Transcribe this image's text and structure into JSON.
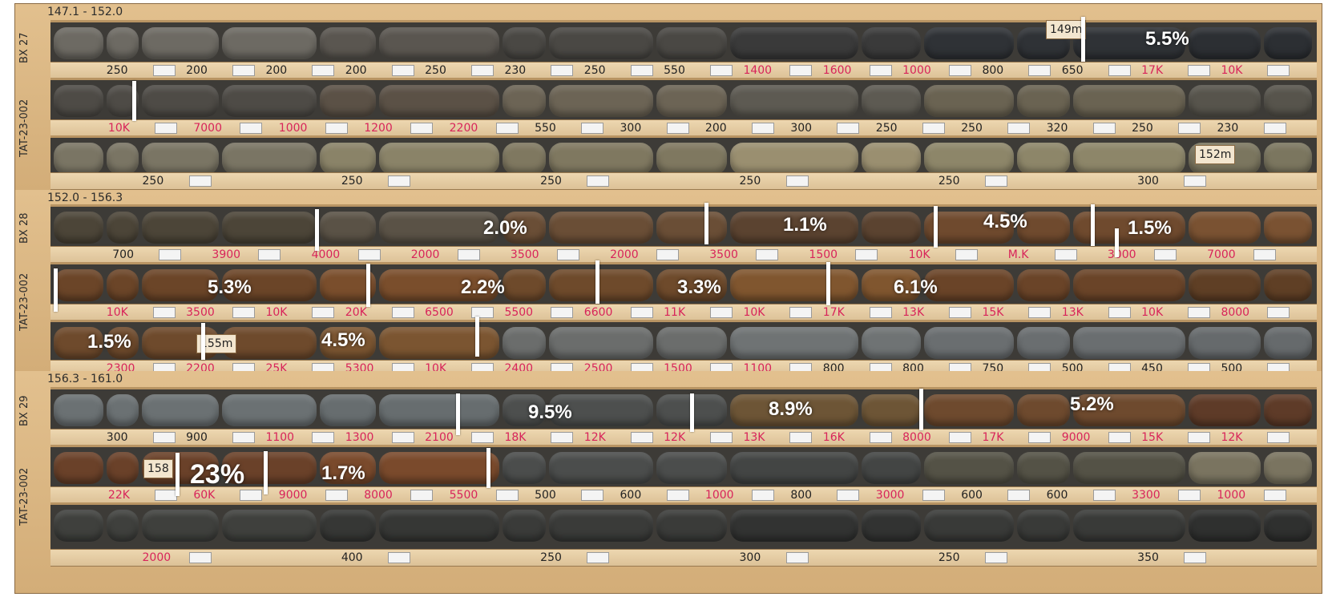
{
  "boxes": [
    {
      "header": "147.1 - 152.0",
      "side_label": "BX 27"
    },
    {
      "header": "152.0 - 156.3",
      "side_label": "BX 28"
    },
    {
      "header": "156.3 - 161.0",
      "side_label": "BX 29"
    }
  ],
  "hole_labels": [
    "TAT-23-002",
    "TAT-23-002",
    "TAT-23-002"
  ],
  "depth_tags": [
    "149m",
    "152m",
    "155m",
    "158"
  ],
  "rows": [
    {
      "assays": [
        "250",
        "200",
        "200",
        "200",
        "250",
        "230",
        "250",
        "550",
        "1400",
        "1600",
        "1000",
        "800",
        "650",
        "17K",
        "10K"
      ],
      "tone": [
        "#6d6a63",
        "#5a5650",
        "#4a4844",
        "#3a3a3a",
        "#2f3236",
        "#2c2f33"
      ]
    },
    {
      "assays": [
        "10K",
        "7000",
        "1000",
        "1200",
        "2200",
        "550",
        "300",
        "200",
        "300",
        "250",
        "250",
        "320",
        "250",
        "230"
      ],
      "tone": [
        "#4e4b46",
        "#5b5146",
        "#6c6455",
        "#5d5a52",
        "#6a6352",
        "#57544c"
      ]
    },
    {
      "assays": [
        "250",
        "250",
        "250",
        "250",
        "250",
        "300"
      ],
      "tone": [
        "#7a7564",
        "#8a8368",
        "#7f7860",
        "#9a8f70",
        "#8d8669",
        "#7b765f"
      ]
    },
    {
      "assays": [
        "700",
        "3900",
        "4000",
        "2000",
        "3500",
        "2000",
        "3500",
        "1500",
        "10K",
        "M.K",
        "3000",
        "7000"
      ],
      "tone": [
        "#4c4538",
        "#5a5246",
        "#6a4e36",
        "#5b4330",
        "#6f4a2e",
        "#7a5232"
      ]
    },
    {
      "assays": [
        "10K",
        "3500",
        "10K",
        "20K",
        "6500",
        "5500",
        "6600",
        "11K",
        "10K",
        "17K",
        "13K",
        "15K",
        "13K",
        "10K",
        "8000"
      ],
      "tone": [
        "#6b4528",
        "#7a4e2c",
        "#6e4a2b",
        "#80562f",
        "#6a4428",
        "#5f3f25"
      ]
    },
    {
      "assays": [
        "2300",
        "2200",
        "25K",
        "5300",
        "10K",
        "2400",
        "2500",
        "1500",
        "1100",
        "800",
        "800",
        "750",
        "500",
        "450",
        "500"
      ],
      "tone": [
        "#6e4a2c",
        "#7b5531",
        "#6b6d6c",
        "#6f7374",
        "#6a6e70",
        "#666a6c"
      ]
    },
    {
      "assays": [
        "300",
        "900",
        "1100",
        "1300",
        "2100",
        "18K",
        "12K",
        "12K",
        "13K",
        "16K",
        "8000",
        "17K",
        "9000",
        "15K",
        "12K"
      ],
      "tone": [
        "#6b7173",
        "#676d6f",
        "#4d4f4e",
        "#6d5536",
        "#6e4a2e",
        "#5e3b28"
      ]
    },
    {
      "assays": [
        "22K",
        "60K",
        "9000",
        "8000",
        "5500",
        "500",
        "600",
        "1000",
        "800",
        "3000",
        "600",
        "600",
        "3300",
        "1000"
      ],
      "tone": [
        "#6a4129",
        "#7a4a2c",
        "#4b4d4c",
        "#434544",
        "#545246",
        "#7a7460"
      ]
    },
    {
      "assays": [
        "2000",
        "400",
        "250",
        "300",
        "250",
        "350"
      ],
      "tone": [
        "#3f403d",
        "#363735",
        "#3a3b39",
        "#323332",
        "#393a38",
        "#2f302f"
      ]
    }
  ],
  "intervals": [
    "5.5%",
    "2.0%",
    "1.1%",
    "4.5%",
    "1.5%",
    "5.3%",
    "2.2%",
    "3.3%",
    "6.1%",
    "1.5%",
    "4.5%",
    "9.5%",
    "8.9%",
    "5.2%",
    "23%",
    "1.7%"
  ],
  "colors": {
    "assay_red": "#d8245a",
    "assay_black": "#222222",
    "marker": "#ffffff"
  }
}
